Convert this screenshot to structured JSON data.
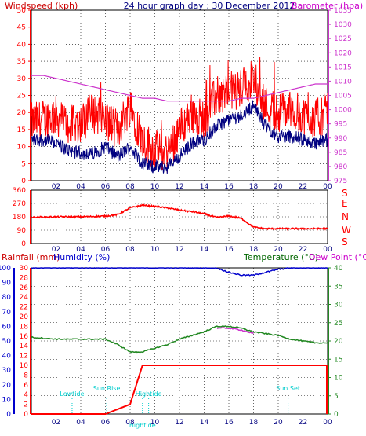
{
  "header": {
    "left_title": "Windspeed (kph)",
    "center_title": "24 hour graph day : 30 December 2012",
    "right_title": "Barometer (hpa)"
  },
  "colors": {
    "wind": "#ff0000",
    "gust": "#ff0000",
    "avg_wind": "#000080",
    "barometer": "#cc33cc",
    "direction": "#ff0000",
    "rain": "#ff0000",
    "humidity": "#0000cc",
    "temperature": "#228822",
    "dewpoint": "#cc33cc",
    "grid": "#000000",
    "annotation": "#00cccc"
  },
  "x_ticks": [
    "02",
    "04",
    "06",
    "08",
    "10",
    "12",
    "14",
    "16",
    "18",
    "20",
    "22",
    "00"
  ],
  "chart_data": [
    {
      "type": "line",
      "title": "24 hour graph day : 30 December 2012",
      "ylabel": "Windspeed (kph)",
      "y2label": "Barometer (hpa)",
      "ylim": [
        0,
        50
      ],
      "y2lim": [
        975,
        1035
      ],
      "yticks": [
        0,
        5,
        10,
        15,
        20,
        25,
        30,
        35,
        40,
        45,
        50
      ],
      "y2ticks": [
        975,
        980,
        985,
        990,
        995,
        1000,
        1005,
        1010,
        1015,
        1020,
        1025,
        1030,
        1035
      ],
      "x_hours": [
        0,
        1,
        2,
        3,
        4,
        5,
        6,
        7,
        8,
        9,
        10,
        11,
        12,
        13,
        14,
        15,
        16,
        17,
        18,
        19,
        20,
        21,
        22,
        23,
        24
      ],
      "series": [
        {
          "key": "gust",
          "values": [
            17,
            18,
            19,
            16,
            17,
            20,
            18,
            15,
            22,
            12,
            9,
            8,
            15,
            20,
            18,
            25,
            26,
            27,
            30,
            22,
            20,
            21,
            19,
            18,
            20
          ]
        },
        {
          "key": "wind_avg",
          "values": [
            12,
            12,
            11,
            9,
            8,
            8,
            10,
            7,
            10,
            5,
            4,
            4,
            7,
            11,
            12,
            16,
            18,
            19,
            22,
            16,
            13,
            13,
            12,
            11,
            12
          ]
        },
        {
          "key": "barometer",
          "values": [
            1012,
            1012,
            1011,
            1010,
            1009,
            1008,
            1007,
            1006,
            1005,
            1004,
            1004,
            1003,
            1003,
            1003,
            1003,
            1003,
            1003,
            1004,
            1004,
            1005,
            1006,
            1007,
            1008,
            1009,
            1009
          ]
        }
      ]
    },
    {
      "type": "line",
      "ylabel": "",
      "ylim": [
        0,
        360
      ],
      "yticks": [
        0,
        90,
        180,
        270,
        360
      ],
      "compass_labels": [
        "S",
        "E",
        "N",
        "W",
        "S"
      ],
      "x_hours": [
        0,
        2,
        4,
        6,
        7,
        8,
        9,
        10,
        11,
        12,
        13,
        14,
        15,
        16,
        17,
        18,
        19,
        20,
        21,
        22,
        23,
        24
      ],
      "series": [
        {
          "key": "wind_direction",
          "values": [
            178,
            180,
            180,
            185,
            195,
            240,
            258,
            250,
            240,
            225,
            215,
            200,
            175,
            185,
            170,
            110,
            100,
            100,
            100,
            100,
            100,
            100
          ]
        }
      ]
    },
    {
      "type": "line",
      "ylabel": "Rainfall (mm)",
      "y2label": "Humidity (%)",
      "y3label": "Temperature (°C)",
      "y4label": "Dew Point (°C)",
      "ylim": [
        0,
        30
      ],
      "y2lim": [
        0,
        100
      ],
      "y3lim": [
        0,
        40
      ],
      "yticks": [
        0,
        2,
        4,
        6,
        8,
        10,
        12,
        14,
        16,
        18,
        20,
        22,
        24,
        26,
        28,
        30
      ],
      "y2ticks": [
        0,
        10,
        20,
        30,
        40,
        50,
        60,
        70,
        80,
        90,
        100
      ],
      "y3ticks": [
        0,
        5,
        10,
        15,
        20,
        25,
        30,
        35,
        40
      ],
      "x_hours": [
        0,
        2,
        4,
        6,
        7,
        8,
        9,
        10,
        11,
        12,
        13,
        14,
        15,
        16,
        17,
        18,
        19,
        20,
        21,
        22,
        23,
        24
      ],
      "series": [
        {
          "key": "rainfall",
          "values": [
            0,
            0,
            0,
            0,
            1,
            2,
            10,
            10,
            10,
            10,
            10,
            10,
            10,
            10,
            10,
            10,
            10,
            10,
            10,
            10,
            10,
            10
          ]
        },
        {
          "key": "humidity",
          "values": [
            100,
            100,
            100,
            100,
            100,
            100,
            100,
            100,
            100,
            100,
            100,
            100,
            100,
            97,
            95,
            95,
            97,
            99,
            100,
            100,
            100,
            100
          ]
        },
        {
          "key": "temperature",
          "values": [
            21,
            20.5,
            20.5,
            20.5,
            19,
            17,
            17,
            18,
            19,
            20.5,
            21.5,
            22.5,
            24,
            24,
            23.5,
            22.5,
            22,
            21.5,
            20.5,
            20,
            19.5,
            19.5
          ]
        },
        {
          "key": "dewpoint",
          "values": [
            null,
            null,
            null,
            null,
            null,
            null,
            null,
            null,
            null,
            null,
            null,
            null,
            23.5,
            23.5,
            23,
            22,
            null,
            null,
            null,
            null,
            null,
            null
          ]
        }
      ],
      "annotations": [
        {
          "label": "Lowtide",
          "hour": 3.3
        },
        {
          "label": "Sun Rise",
          "hour": 6.1
        },
        {
          "label": "Hightide",
          "hour": 9.5
        },
        {
          "label": "Hightide",
          "hour": 9.0
        },
        {
          "label": "Sun Set",
          "hour": 20.8
        }
      ]
    }
  ],
  "bottom_labels": {
    "rain": "Rainfall (mm)",
    "humidity": "Humidity (%)",
    "temperature": "Temperature (°C)",
    "dewpoint": "Dew Point (°C)"
  }
}
